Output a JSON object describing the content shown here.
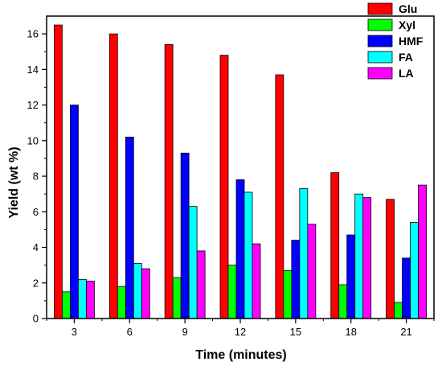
{
  "chart_data": {
    "type": "bar",
    "title": "",
    "xlabel": "Time (minutes)",
    "ylabel": "Yield (wt %)",
    "categories": [
      "3",
      "6",
      "9",
      "12",
      "15",
      "18",
      "21"
    ],
    "ylim": [
      0,
      17
    ],
    "yticks": [
      "0",
      "2",
      "4",
      "6",
      "8",
      "10",
      "12",
      "14",
      "16"
    ],
    "legend_position": "top-right",
    "grid": false,
    "series": [
      {
        "name": "Glu",
        "color": "#ff0000",
        "values": [
          16.5,
          16.0,
          15.4,
          14.8,
          13.7,
          8.2,
          6.7
        ]
      },
      {
        "name": "Xyl",
        "color": "#00ff00",
        "values": [
          1.5,
          1.8,
          2.3,
          3.0,
          2.7,
          1.9,
          0.9
        ]
      },
      {
        "name": "HMF",
        "color": "#0000ff",
        "values": [
          12.0,
          10.2,
          9.3,
          7.8,
          4.4,
          4.7,
          3.4
        ]
      },
      {
        "name": "FA",
        "color": "#00ffff",
        "values": [
          2.2,
          3.1,
          6.3,
          7.1,
          7.3,
          7.0,
          5.4
        ]
      },
      {
        "name": "LA",
        "color": "#ff00ff",
        "values": [
          2.1,
          2.8,
          3.8,
          4.2,
          5.3,
          6.8,
          7.5
        ]
      }
    ]
  }
}
